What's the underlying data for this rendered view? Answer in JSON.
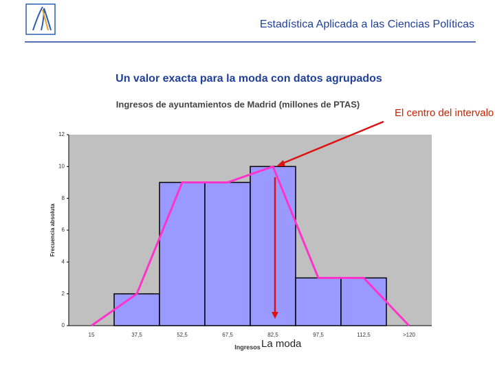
{
  "header": {
    "title": "Estadística Aplicada a las Ciencias Políticas"
  },
  "subtitle": "Un valor exacta para la moda con datos agrupados",
  "chart_data": {
    "type": "bar",
    "title": "Ingresos de ayuntamientos de Madrid (millones de PTAS)",
    "x_label": "Ingresos",
    "y_label": "Frecuencia absoluta",
    "categories": [
      "15",
      "37,5",
      "52,5",
      "67,5",
      "82,5",
      "97,5",
      "112,5",
      ">120"
    ],
    "values": [
      0,
      2,
      9,
      9,
      10,
      3,
      3,
      0
    ],
    "color": "#9999ff",
    "polygon_color": "#ff33cc",
    "ylim": [
      0,
      12
    ],
    "yticks": [
      0,
      2,
      4,
      6,
      8,
      10,
      12
    ],
    "annotations": [
      "El centro del intervalo modal",
      "La moda"
    ]
  }
}
